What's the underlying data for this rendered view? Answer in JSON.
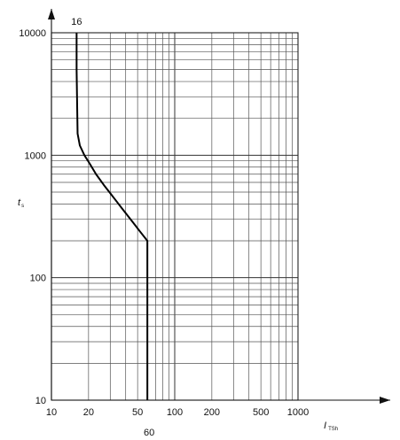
{
  "chart_data": {
    "type": "line",
    "scale": {
      "x": "log",
      "y": "log"
    },
    "xlim": [
      10,
      1000
    ],
    "ylim": [
      10,
      10000
    ],
    "x_ticks": [
      10,
      20,
      50,
      100,
      200,
      500,
      1000
    ],
    "x_tick_labels": [
      "10",
      "20",
      "50",
      "100",
      "200",
      "500",
      "1000"
    ],
    "y_ticks": [
      10,
      100,
      1000,
      10000
    ],
    "y_tick_labels": [
      "10",
      "100",
      "1000",
      "10000"
    ],
    "grid": true,
    "xlabel": {
      "main": "I",
      "sub": "TSh"
    },
    "ylabel": {
      "main": "t",
      "sub": "s"
    },
    "series": [
      {
        "x": [
          16,
          16,
          16.3,
          17,
          18.5,
          20.5,
          23,
          27,
          32,
          38,
          45,
          52,
          60,
          60,
          60
        ],
        "y": [
          10000,
          5000,
          1500,
          1200,
          1000,
          850,
          700,
          560,
          450,
          360,
          290,
          240,
          200,
          100,
          10
        ]
      }
    ],
    "annotations": [
      {
        "text": "16",
        "x": 16,
        "position": "top"
      },
      {
        "text": "60",
        "x": 60,
        "position": "bottom"
      }
    ]
  }
}
